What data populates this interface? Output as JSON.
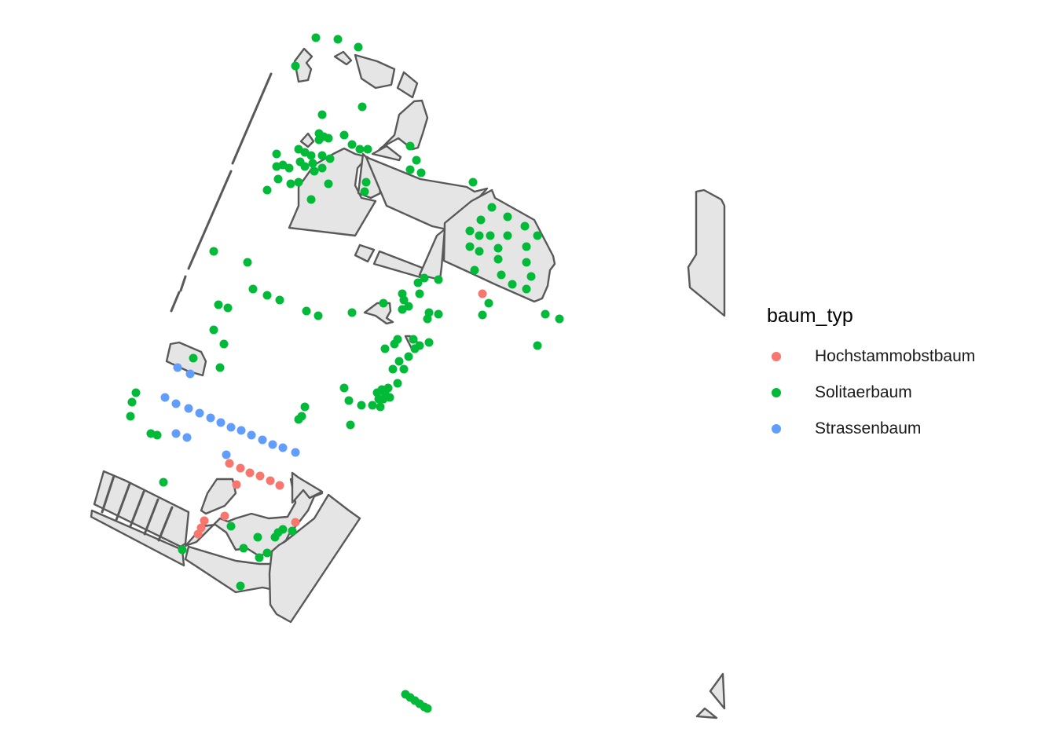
{
  "legend": {
    "title": "baum_typ",
    "items": [
      {
        "label": "Hochstammobstbaum",
        "color": "#F8766D"
      },
      {
        "label": "Solitaerbaum",
        "color": "#00BA38"
      },
      {
        "label": "Strassenbaum",
        "color": "#619CFF"
      }
    ]
  },
  "map_style": {
    "polygon_fill": "#E5E5E5",
    "polygon_stroke": "#595959",
    "background": "#FFFFFF"
  }
}
